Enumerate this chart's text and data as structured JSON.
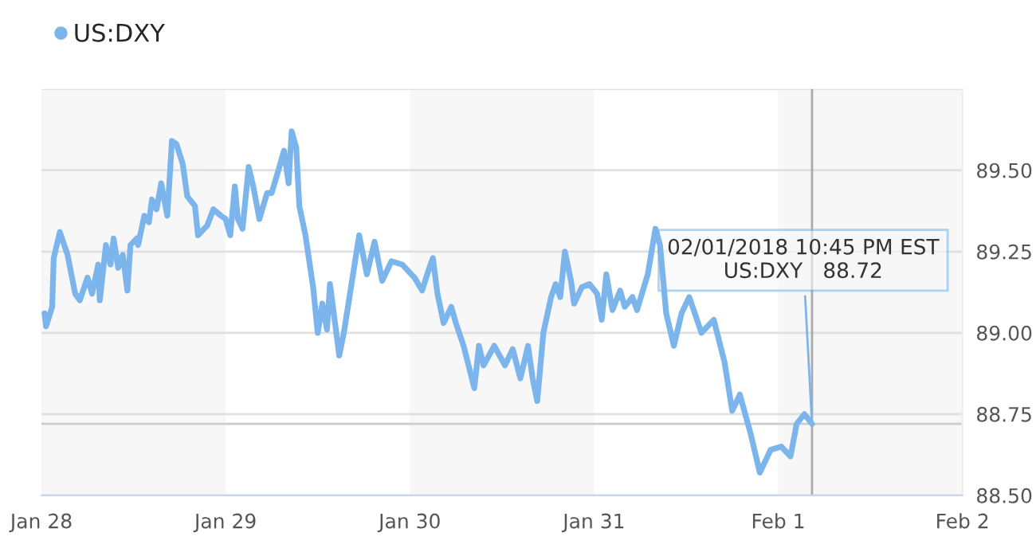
{
  "chart_data": {
    "type": "line",
    "x": [
      "2018-01-28T00:24",
      "2018-01-28T00:36",
      "2018-01-28T01:24",
      "2018-01-28T01:36",
      "2018-01-28T02:24",
      "2018-01-28T03:24",
      "2018-01-28T04:24",
      "2018-01-28T05:00",
      "2018-01-28T06:00",
      "2018-01-28T06:36",
      "2018-01-28T07:24",
      "2018-01-28T07:36",
      "2018-01-28T08:24",
      "2018-01-28T09:00",
      "2018-01-28T09:24",
      "2018-01-28T10:00",
      "2018-01-28T10:36",
      "2018-01-28T11:12",
      "2018-01-28T11:36",
      "2018-01-28T12:24",
      "2018-01-28T12:36",
      "2018-01-28T13:24",
      "2018-01-28T14:00",
      "2018-01-28T14:24",
      "2018-01-28T15:00",
      "2018-01-28T15:36",
      "2018-01-28T16:24",
      "2018-01-28T17:00",
      "2018-01-28T17:36",
      "2018-01-28T18:24",
      "2018-01-28T19:00",
      "2018-01-28T20:00",
      "2018-01-28T20:24",
      "2018-01-28T21:36",
      "2018-01-28T22:24",
      "2018-01-28T23:24",
      "2018-01-29T00:00",
      "2018-01-29T00:36",
      "2018-01-29T01:12",
      "2018-01-29T01:36",
      "2018-01-29T02:12",
      "2018-01-29T03:00",
      "2018-01-29T03:36",
      "2018-01-29T04:24",
      "2018-01-29T05:24",
      "2018-01-29T06:00",
      "2018-01-29T07:00",
      "2018-01-29T07:36",
      "2018-01-29T08:12",
      "2018-01-29T08:36",
      "2018-01-29T09:12",
      "2018-01-29T09:36",
      "2018-01-29T10:24",
      "2018-01-29T11:24",
      "2018-01-29T12:00",
      "2018-01-29T12:36",
      "2018-01-29T13:12",
      "2018-01-29T13:36",
      "2018-01-29T14:48",
      "2018-01-29T15:24",
      "2018-01-29T16:36",
      "2018-01-29T17:24",
      "2018-01-29T18:24",
      "2018-01-29T19:24",
      "2018-01-29T20:24",
      "2018-01-29T21:36",
      "2018-01-29T23:00",
      "2018-01-30T00:36",
      "2018-01-30T01:36",
      "2018-01-30T02:24",
      "2018-01-30T03:00",
      "2018-01-30T03:36",
      "2018-01-30T04:24",
      "2018-01-30T05:24",
      "2018-01-30T06:00",
      "2018-01-30T07:00",
      "2018-01-30T08:24",
      "2018-01-30T09:00",
      "2018-01-30T09:36",
      "2018-01-30T11:00",
      "2018-01-30T12:24",
      "2018-01-30T13:24",
      "2018-01-30T14:24",
      "2018-01-30T15:24",
      "2018-01-30T16:00",
      "2018-01-30T16:36",
      "2018-01-30T17:24",
      "2018-01-30T18:24",
      "2018-01-30T19:00",
      "2018-01-30T19:36",
      "2018-01-30T20:12",
      "2018-01-30T21:00",
      "2018-01-30T21:24",
      "2018-01-30T22:24",
      "2018-01-30T23:24",
      "2018-01-31T00:24",
      "2018-01-31T01:00",
      "2018-01-31T01:36",
      "2018-01-31T02:24",
      "2018-01-31T03:24",
      "2018-01-31T04:00",
      "2018-01-31T05:00",
      "2018-01-31T05:36",
      "2018-01-31T07:00",
      "2018-01-31T08:00",
      "2018-01-31T08:36",
      "2018-01-31T09:24",
      "2018-01-31T10:24",
      "2018-01-31T11:24",
      "2018-01-31T12:24",
      "2018-01-31T14:00",
      "2018-01-31T15:36",
      "2018-01-31T17:00",
      "2018-01-31T18:00",
      "2018-01-31T19:00",
      "2018-01-31T20:24",
      "2018-01-31T21:36",
      "2018-01-31T23:00",
      "2018-02-01T00:24",
      "2018-02-01T01:36",
      "2018-02-01T02:24",
      "2018-02-01T03:24",
      "2018-02-01T04:24"
    ],
    "series": [
      {
        "name": "US:DXY",
        "color": "#7cb5ec",
        "values": [
          89.06,
          89.02,
          89.08,
          89.23,
          89.31,
          89.24,
          89.12,
          89.1,
          89.17,
          89.12,
          89.21,
          89.1,
          89.27,
          89.21,
          89.29,
          89.2,
          89.24,
          89.13,
          89.27,
          89.29,
          89.27,
          89.36,
          89.34,
          89.41,
          89.38,
          89.46,
          89.36,
          89.59,
          89.58,
          89.52,
          89.42,
          89.39,
          89.3,
          89.33,
          89.38,
          89.36,
          89.35,
          89.3,
          89.45,
          89.35,
          89.32,
          89.51,
          89.45,
          89.35,
          89.43,
          89.43,
          89.51,
          89.56,
          89.46,
          89.62,
          89.57,
          89.39,
          89.3,
          89.14,
          89.0,
          89.09,
          89.01,
          89.15,
          88.93,
          89.0,
          89.18,
          89.3,
          89.18,
          89.28,
          89.16,
          89.22,
          89.21,
          89.17,
          89.13,
          89.19,
          89.23,
          89.12,
          89.03,
          89.08,
          89.03,
          88.96,
          88.83,
          88.96,
          88.9,
          88.96,
          88.9,
          88.95,
          88.86,
          88.96,
          88.86,
          88.79,
          89.0,
          89.11,
          89.15,
          89.11,
          89.25,
          89.16,
          89.09,
          89.14,
          89.15,
          89.12,
          89.04,
          89.18,
          89.07,
          89.13,
          89.08,
          89.11,
          89.07,
          89.18,
          89.32,
          89.27,
          89.06,
          88.96,
          89.06,
          89.11,
          89.0,
          89.04,
          88.91,
          88.76,
          88.81,
          88.69,
          88.57,
          88.64,
          88.65,
          88.62,
          88.72,
          88.75,
          88.72
        ]
      }
    ],
    "xlim": [
      "2018-01-28",
      "2018-02-02"
    ],
    "xticks": [
      {
        "value": "2018-01-28",
        "label": "Jan 28"
      },
      {
        "value": "2018-01-29",
        "label": "Jan 29"
      },
      {
        "value": "2018-01-30",
        "label": "Jan 30"
      },
      {
        "value": "2018-01-31",
        "label": "Jan 31"
      },
      {
        "value": "2018-02-01",
        "label": "Feb 1"
      },
      {
        "value": "2018-02-02",
        "label": "Feb 2"
      }
    ],
    "ylim": [
      88.5,
      89.75
    ],
    "yticks": [
      "88.50",
      88.75,
      "89.00",
      89.25,
      "89.50",
      {
        "value": 89.75,
        "label": null
      }
    ],
    "grid": "y",
    "legend": "top left",
    "marker": "none",
    "line_style": "solid",
    "bands": [
      {
        "axis": "x",
        "from": "2018-01-28",
        "to": "2018-01-29",
        "color": "#f7f7f7"
      },
      {
        "axis": "x",
        "from": "2018-01-30",
        "to": "2018-01-31",
        "color": "#f7f7f7"
      },
      {
        "axis": "x",
        "from": "2018-02-01",
        "to": "2018-02-02",
        "color": "#f7f7f7"
      }
    ],
    "ref_lines": [
      {
        "axis": "x",
        "value": "2018-02-01T04:24",
        "color": "#aaaaaa"
      },
      {
        "axis": "y",
        "value": 88.72,
        "color": "#cccccc"
      }
    ],
    "annotations": [
      {
        "text": "02/01/2018 10:45 PM EST\nUS:DXY   88.72",
        "x": "2018-02-01T04:24",
        "y": 88.72
      }
    ]
  }
}
